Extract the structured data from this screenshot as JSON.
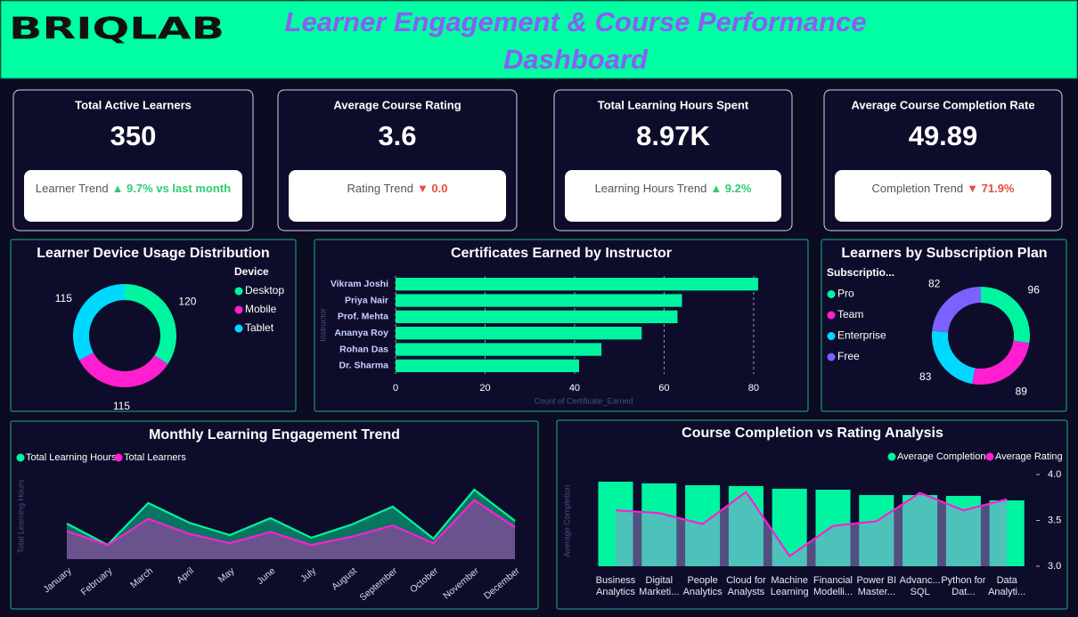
{
  "header": {
    "logo": "BRIQLAB",
    "title": "Learner Engagement & Course Performance Dashboard"
  },
  "kpis": [
    {
      "title": "Total Active Learners",
      "value": 350,
      "trend_label": "Learner Trend",
      "trend": "▲ 9.7% vs last month",
      "trend_color": "#2ecc71"
    },
    {
      "title": "Average Course Rating",
      "value": 3.6,
      "trend_label": "Rating Trend",
      "trend": "▼ 0.0",
      "trend_color": "#e74c3c"
    },
    {
      "title": "Total Learning Hours Spent",
      "value": "8.97K",
      "trend_label": "Learning Hours Trend",
      "trend": "▲ 9.2%",
      "trend_color": "#2ecc71"
    },
    {
      "title": "Average Course Completion Rate",
      "value": 49.89,
      "trend_label": "Completion Trend",
      "trend": "▼ 71.9%",
      "trend_color": "#e74c3c"
    }
  ],
  "chart_data": [
    {
      "type": "donut",
      "title": "Learner Device Usage Distribution",
      "legend_title": "Device",
      "categories": [
        "Desktop",
        "Mobile",
        "Tablet"
      ],
      "values": [
        120,
        115,
        115
      ],
      "colors": [
        "#00f5a0",
        "#ff1fd1",
        "#00d9ff"
      ]
    },
    {
      "type": "bar",
      "orientation": "horizontal",
      "title": "Certificates Earned by Instructor",
      "categories": [
        "Vikram Joshi",
        "Priya Nair",
        "Prof. Mehta",
        "Ananya Roy",
        "Rohan Das",
        "Dr. Sharma"
      ],
      "values": [
        81,
        64,
        63,
        55,
        46,
        41
      ],
      "color": "#00f5a0",
      "xlim": [
        0,
        84
      ],
      "xticks": [
        0,
        20,
        40,
        60,
        80
      ],
      "grid": true,
      "xlabel": "Count of Certificate_Earned",
      "ylabel": "Instructor"
    },
    {
      "type": "donut",
      "title": "Learners by Subscription Plan",
      "legend_title": "Subscriptio...",
      "categories": [
        "Pro",
        "Team",
        "Enterprise",
        "Free"
      ],
      "values": [
        96,
        89,
        83,
        82
      ],
      "colors": [
        "#00f5a0",
        "#ff1fd1",
        "#00d9ff",
        "#7b61ff"
      ]
    },
    {
      "type": "area",
      "title": "Monthly Learning Engagement Trend",
      "categories": [
        "January",
        "February",
        "March",
        "April",
        "May",
        "June",
        "July",
        "August",
        "September",
        "October",
        "November",
        "December"
      ],
      "series": [
        {
          "name": "Total Learning Hours",
          "color": "#00f5a0",
          "values": [
            720,
            288,
            1134,
            738,
            486,
            828,
            432,
            702,
            1062,
            414,
            1404,
            774
          ]
        },
        {
          "name": "Total Learners",
          "color": "#ff1fd1",
          "axis": "y2",
          "values": [
            30,
            15,
            43,
            27,
            17,
            29,
            15,
            24,
            36,
            17,
            63,
            34
          ]
        }
      ],
      "ylim": [
        0,
        1800
      ],
      "y2lim": [
        0,
        95
      ],
      "ylabel": "Total Learning Hours"
    },
    {
      "type": "combo",
      "title": "Course Completion vs Rating Analysis",
      "categories": [
        "Business Analytics",
        "Digital Marketi...",
        "People Analytics",
        "Cloud for Analysts",
        "Machine Learning",
        "Financial Modelli...",
        "Power BI Master...",
        "Advanc... SQL",
        "Python for Dat...",
        "Data Analyti..."
      ],
      "series": [
        {
          "name": "Average Completion",
          "type": "bar",
          "color": "#00f5a0",
          "values": [
            50.7,
            49.7,
            48.6,
            48.1,
            46.5,
            45.9,
            42.7,
            42.7,
            42.2,
            39.5
          ]
        },
        {
          "name": "Average Rating",
          "type": "line",
          "axis": "y2",
          "color": "#ff1fd1",
          "values": [
            3.61,
            3.58,
            3.46,
            3.81,
            3.11,
            3.44,
            3.49,
            3.8,
            3.61,
            3.73
          ]
        }
      ],
      "ylim": [
        0,
        55
      ],
      "y2lim": [
        3,
        4
      ],
      "y2ticks": [
        {
          "value": 3,
          "label": "3.0"
        },
        3.5,
        {
          "value": 4,
          "label": "4.0"
        }
      ],
      "ylabel": "Average Completion"
    }
  ]
}
